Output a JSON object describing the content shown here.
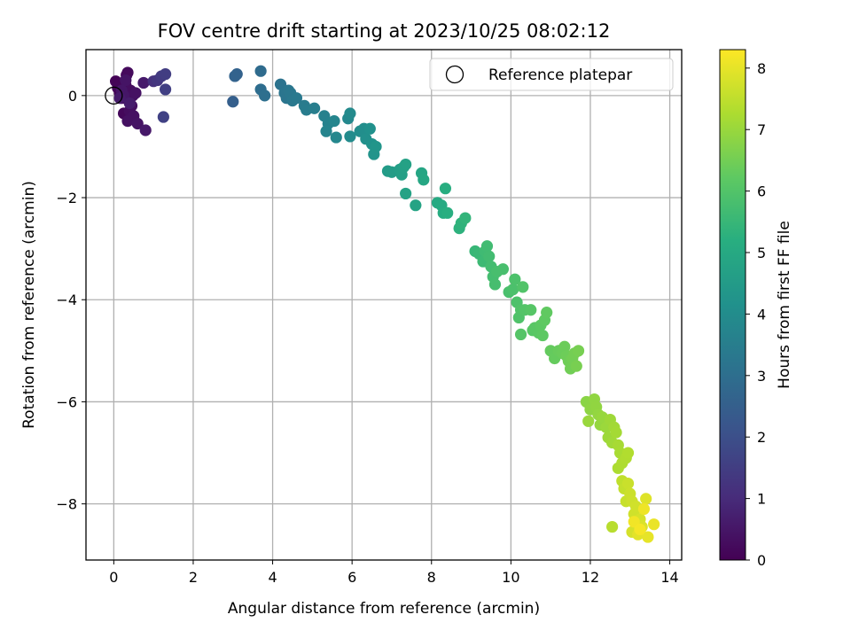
{
  "chart_data": {
    "type": "scatter",
    "title": "FOV centre drift starting at 2023/10/25 08:02:12",
    "xlabel": "Angular distance from reference (arcmin)",
    "ylabel": "Rotation from reference (arcmin)",
    "xlim": [
      -0.7,
      14.3
    ],
    "ylim": [
      -9.1,
      0.9
    ],
    "xticks": [
      0,
      2,
      4,
      6,
      8,
      10,
      12,
      14
    ],
    "yticks": [
      0,
      -2,
      -4,
      -6,
      -8
    ],
    "xtick_labels": [
      "0",
      "2",
      "4",
      "6",
      "8",
      "10",
      "12",
      "14"
    ],
    "ytick_labels": [
      "0",
      "−2",
      "−4",
      "−6",
      "−8"
    ],
    "grid": true,
    "legend": {
      "label": "Reference platepar",
      "position": "top-right"
    },
    "reference_point": {
      "x": 0,
      "y": 0
    },
    "colorbar": {
      "label": "Hours from first FF file",
      "colormap": "viridis",
      "range": [
        0,
        8.3
      ],
      "ticks": [
        0,
        1,
        2,
        3,
        4,
        5,
        6,
        7,
        8
      ],
      "tick_labels": [
        "0",
        "1",
        "2",
        "3",
        "4",
        "5",
        "6",
        "7",
        "8"
      ]
    },
    "points": [
      [
        0.05,
        0.28,
        0.05
      ],
      [
        0.1,
        0.15,
        0.08
      ],
      [
        0.15,
        0.05,
        0.1
      ],
      [
        0.2,
        -0.05,
        0.12
      ],
      [
        0.25,
        -0.35,
        0.15
      ],
      [
        0.3,
        0.2,
        0.18
      ],
      [
        0.32,
        0.4,
        0.2
      ],
      [
        0.35,
        0.45,
        0.22
      ],
      [
        0.38,
        -0.1,
        0.25
      ],
      [
        0.4,
        -0.3,
        0.28
      ],
      [
        0.42,
        0.1,
        0.3
      ],
      [
        0.45,
        -0.2,
        0.32
      ],
      [
        0.48,
        0.0,
        0.34
      ],
      [
        0.5,
        -0.4,
        0.36
      ],
      [
        0.35,
        -0.5,
        0.38
      ],
      [
        0.55,
        0.05,
        0.4
      ],
      [
        0.6,
        -0.55,
        0.42
      ],
      [
        0.3,
        0.3,
        0.45
      ],
      [
        0.2,
        0.1,
        0.47
      ],
      [
        0.25,
        0.0,
        0.5
      ],
      [
        0.8,
        -0.68,
        0.55
      ],
      [
        0.75,
        0.25,
        0.6
      ],
      [
        0.15,
        -0.05,
        0.62
      ],
      [
        0.4,
        -0.15,
        0.65
      ],
      [
        1.0,
        0.28,
        1.15
      ],
      [
        1.1,
        0.3,
        1.3
      ],
      [
        1.2,
        0.38,
        1.4
      ],
      [
        1.3,
        0.42,
        1.5
      ],
      [
        1.3,
        0.12,
        1.55
      ],
      [
        1.25,
        -0.42,
        1.6
      ],
      [
        3.0,
        -0.12,
        2.5
      ],
      [
        3.1,
        0.42,
        2.6
      ],
      [
        3.05,
        0.38,
        2.62
      ],
      [
        3.7,
        0.48,
        2.9
      ],
      [
        3.7,
        0.12,
        2.95
      ],
      [
        3.8,
        0.0,
        3.0
      ],
      [
        4.2,
        0.22,
        3.15
      ],
      [
        4.3,
        0.05,
        3.2
      ],
      [
        4.35,
        -0.05,
        3.22
      ],
      [
        4.4,
        0.1,
        3.25
      ],
      [
        4.45,
        0.05,
        3.28
      ],
      [
        4.5,
        -0.1,
        3.3
      ],
      [
        4.6,
        -0.05,
        3.35
      ],
      [
        4.8,
        -0.2,
        3.4
      ],
      [
        4.85,
        -0.28,
        3.45
      ],
      [
        5.05,
        -0.25,
        3.5
      ],
      [
        5.3,
        -0.4,
        3.6
      ],
      [
        5.4,
        -0.55,
        3.65
      ],
      [
        5.35,
        -0.7,
        3.7
      ],
      [
        5.55,
        -0.5,
        3.75
      ],
      [
        5.6,
        -0.82,
        3.8
      ],
      [
        5.9,
        -0.45,
        3.85
      ],
      [
        5.95,
        -0.35,
        3.9
      ],
      [
        5.95,
        -0.8,
        3.95
      ],
      [
        6.2,
        -0.7,
        4.0
      ],
      [
        6.3,
        -0.65,
        4.05
      ],
      [
        6.35,
        -0.85,
        4.1
      ],
      [
        6.45,
        -0.65,
        4.15
      ],
      [
        6.5,
        -0.95,
        4.2
      ],
      [
        6.55,
        -1.15,
        4.25
      ],
      [
        6.6,
        -1.0,
        4.3
      ],
      [
        6.9,
        -1.48,
        4.5
      ],
      [
        7.0,
        -1.5,
        4.55
      ],
      [
        7.2,
        -1.45,
        4.6
      ],
      [
        7.25,
        -1.55,
        4.65
      ],
      [
        7.3,
        -1.4,
        4.7
      ],
      [
        7.35,
        -1.35,
        4.72
      ],
      [
        7.35,
        -1.92,
        4.75
      ],
      [
        7.6,
        -2.15,
        4.8
      ],
      [
        7.75,
        -1.52,
        4.85
      ],
      [
        7.8,
        -1.65,
        4.9
      ],
      [
        8.15,
        -2.1,
        5.0
      ],
      [
        8.25,
        -2.15,
        5.05
      ],
      [
        8.3,
        -2.3,
        5.1
      ],
      [
        8.35,
        -1.82,
        5.15
      ],
      [
        8.4,
        -2.3,
        5.2
      ],
      [
        8.7,
        -2.6,
        5.3
      ],
      [
        8.75,
        -2.5,
        5.35
      ],
      [
        8.85,
        -2.4,
        5.4
      ],
      [
        9.1,
        -3.05,
        5.5
      ],
      [
        9.2,
        -3.1,
        5.55
      ],
      [
        9.3,
        -3.25,
        5.6
      ],
      [
        9.35,
        -3.05,
        5.65
      ],
      [
        9.4,
        -2.95,
        5.68
      ],
      [
        9.45,
        -3.15,
        5.7
      ],
      [
        9.5,
        -3.35,
        5.72
      ],
      [
        9.55,
        -3.55,
        5.75
      ],
      [
        9.6,
        -3.7,
        5.78
      ],
      [
        9.65,
        -3.45,
        5.8
      ],
      [
        9.8,
        -3.4,
        5.82
      ],
      [
        9.95,
        -3.85,
        5.85
      ],
      [
        10.05,
        -3.8,
        5.88
      ],
      [
        10.1,
        -3.6,
        5.9
      ],
      [
        10.15,
        -4.05,
        5.92
      ],
      [
        10.2,
        -4.35,
        5.95
      ],
      [
        10.25,
        -4.2,
        5.97
      ],
      [
        10.3,
        -3.75,
        6.0
      ],
      [
        10.35,
        -4.2,
        6.02
      ],
      [
        10.25,
        -4.68,
        6.05
      ],
      [
        10.5,
        -4.2,
        6.08
      ],
      [
        10.55,
        -4.6,
        6.1
      ],
      [
        10.6,
        -4.55,
        6.12
      ],
      [
        10.7,
        -4.65,
        6.15
      ],
      [
        10.75,
        -4.5,
        6.18
      ],
      [
        10.8,
        -4.7,
        6.2
      ],
      [
        10.85,
        -4.4,
        6.22
      ],
      [
        10.9,
        -4.25,
        6.25
      ],
      [
        11.0,
        -5.0,
        6.3
      ],
      [
        11.1,
        -5.15,
        6.32
      ],
      [
        11.2,
        -5.0,
        6.35
      ],
      [
        11.3,
        -5.05,
        6.38
      ],
      [
        11.35,
        -4.92,
        6.4
      ],
      [
        11.4,
        -5.1,
        6.42
      ],
      [
        11.45,
        -5.2,
        6.45
      ],
      [
        11.5,
        -5.35,
        6.48
      ],
      [
        11.55,
        -5.15,
        6.5
      ],
      [
        11.6,
        -5.05,
        6.52
      ],
      [
        11.7,
        -5.0,
        6.55
      ],
      [
        11.65,
        -5.3,
        6.57
      ],
      [
        11.9,
        -6.0,
        6.8
      ],
      [
        12.0,
        -6.15,
        6.85
      ],
      [
        12.1,
        -5.95,
        6.88
      ],
      [
        12.15,
        -6.1,
        6.9
      ],
      [
        12.2,
        -6.25,
        6.92
      ],
      [
        12.25,
        -6.45,
        6.95
      ],
      [
        12.3,
        -6.3,
        6.97
      ],
      [
        11.95,
        -6.38,
        7.0
      ],
      [
        12.4,
        -6.5,
        7.02
      ],
      [
        12.45,
        -6.7,
        7.05
      ],
      [
        12.5,
        -6.35,
        7.07
      ],
      [
        12.55,
        -6.8,
        7.1
      ],
      [
        12.6,
        -6.5,
        7.12
      ],
      [
        12.65,
        -6.6,
        7.15
      ],
      [
        12.7,
        -6.85,
        7.18
      ],
      [
        12.75,
        -7.0,
        7.2
      ],
      [
        12.7,
        -7.3,
        7.25
      ],
      [
        12.8,
        -7.2,
        7.28
      ],
      [
        12.9,
        -7.1,
        7.3
      ],
      [
        12.95,
        -7.0,
        7.32
      ],
      [
        12.55,
        -8.45,
        7.4
      ],
      [
        12.8,
        -7.55,
        7.5
      ],
      [
        12.85,
        -7.7,
        7.55
      ],
      [
        12.9,
        -7.95,
        7.6
      ],
      [
        12.95,
        -7.6,
        7.62
      ],
      [
        13.0,
        -7.8,
        7.65
      ],
      [
        13.05,
        -7.95,
        7.68
      ],
      [
        13.1,
        -8.2,
        7.7
      ],
      [
        13.15,
        -8.05,
        7.72
      ],
      [
        13.2,
        -8.4,
        7.75
      ],
      [
        13.05,
        -8.55,
        7.78
      ],
      [
        13.25,
        -8.3,
        7.8
      ],
      [
        13.3,
        -8.45,
        7.85
      ],
      [
        13.4,
        -7.9,
        7.9
      ],
      [
        13.2,
        -8.6,
        7.95
      ],
      [
        13.45,
        -8.65,
        8.0
      ],
      [
        13.6,
        -8.4,
        8.05
      ],
      [
        13.35,
        -8.1,
        8.1
      ],
      [
        13.1,
        -8.35,
        8.15
      ],
      [
        13.25,
        -8.5,
        8.2
      ]
    ]
  }
}
